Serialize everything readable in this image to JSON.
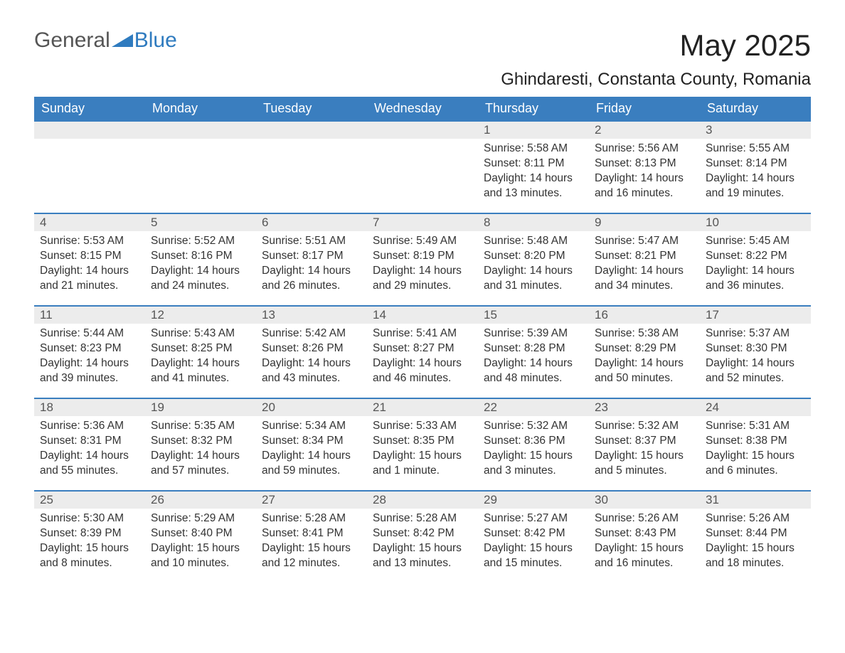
{
  "logo": {
    "general": "General",
    "blue": "Blue"
  },
  "title": "May 2025",
  "location": "Ghindaresti, Constanta County, Romania",
  "colors": {
    "header_bg": "#3a7ebf",
    "header_text": "#ffffff",
    "daynum_bg": "#ececec",
    "daynum_text": "#555555",
    "body_text": "#333333",
    "rule": "#3a7ebf",
    "logo_blue": "#2f7bbf",
    "logo_gray": "#555555",
    "background": "#ffffff"
  },
  "daysOfWeek": [
    "Sunday",
    "Monday",
    "Tuesday",
    "Wednesday",
    "Thursday",
    "Friday",
    "Saturday"
  ],
  "weeks": [
    [
      null,
      null,
      null,
      null,
      {
        "n": "1",
        "sunrise": "Sunrise: 5:58 AM",
        "sunset": "Sunset: 8:11 PM",
        "daylight": "Daylight: 14 hours and 13 minutes."
      },
      {
        "n": "2",
        "sunrise": "Sunrise: 5:56 AM",
        "sunset": "Sunset: 8:13 PM",
        "daylight": "Daylight: 14 hours and 16 minutes."
      },
      {
        "n": "3",
        "sunrise": "Sunrise: 5:55 AM",
        "sunset": "Sunset: 8:14 PM",
        "daylight": "Daylight: 14 hours and 19 minutes."
      }
    ],
    [
      {
        "n": "4",
        "sunrise": "Sunrise: 5:53 AM",
        "sunset": "Sunset: 8:15 PM",
        "daylight": "Daylight: 14 hours and 21 minutes."
      },
      {
        "n": "5",
        "sunrise": "Sunrise: 5:52 AM",
        "sunset": "Sunset: 8:16 PM",
        "daylight": "Daylight: 14 hours and 24 minutes."
      },
      {
        "n": "6",
        "sunrise": "Sunrise: 5:51 AM",
        "sunset": "Sunset: 8:17 PM",
        "daylight": "Daylight: 14 hours and 26 minutes."
      },
      {
        "n": "7",
        "sunrise": "Sunrise: 5:49 AM",
        "sunset": "Sunset: 8:19 PM",
        "daylight": "Daylight: 14 hours and 29 minutes."
      },
      {
        "n": "8",
        "sunrise": "Sunrise: 5:48 AM",
        "sunset": "Sunset: 8:20 PM",
        "daylight": "Daylight: 14 hours and 31 minutes."
      },
      {
        "n": "9",
        "sunrise": "Sunrise: 5:47 AM",
        "sunset": "Sunset: 8:21 PM",
        "daylight": "Daylight: 14 hours and 34 minutes."
      },
      {
        "n": "10",
        "sunrise": "Sunrise: 5:45 AM",
        "sunset": "Sunset: 8:22 PM",
        "daylight": "Daylight: 14 hours and 36 minutes."
      }
    ],
    [
      {
        "n": "11",
        "sunrise": "Sunrise: 5:44 AM",
        "sunset": "Sunset: 8:23 PM",
        "daylight": "Daylight: 14 hours and 39 minutes."
      },
      {
        "n": "12",
        "sunrise": "Sunrise: 5:43 AM",
        "sunset": "Sunset: 8:25 PM",
        "daylight": "Daylight: 14 hours and 41 minutes."
      },
      {
        "n": "13",
        "sunrise": "Sunrise: 5:42 AM",
        "sunset": "Sunset: 8:26 PM",
        "daylight": "Daylight: 14 hours and 43 minutes."
      },
      {
        "n": "14",
        "sunrise": "Sunrise: 5:41 AM",
        "sunset": "Sunset: 8:27 PM",
        "daylight": "Daylight: 14 hours and 46 minutes."
      },
      {
        "n": "15",
        "sunrise": "Sunrise: 5:39 AM",
        "sunset": "Sunset: 8:28 PM",
        "daylight": "Daylight: 14 hours and 48 minutes."
      },
      {
        "n": "16",
        "sunrise": "Sunrise: 5:38 AM",
        "sunset": "Sunset: 8:29 PM",
        "daylight": "Daylight: 14 hours and 50 minutes."
      },
      {
        "n": "17",
        "sunrise": "Sunrise: 5:37 AM",
        "sunset": "Sunset: 8:30 PM",
        "daylight": "Daylight: 14 hours and 52 minutes."
      }
    ],
    [
      {
        "n": "18",
        "sunrise": "Sunrise: 5:36 AM",
        "sunset": "Sunset: 8:31 PM",
        "daylight": "Daylight: 14 hours and 55 minutes."
      },
      {
        "n": "19",
        "sunrise": "Sunrise: 5:35 AM",
        "sunset": "Sunset: 8:32 PM",
        "daylight": "Daylight: 14 hours and 57 minutes."
      },
      {
        "n": "20",
        "sunrise": "Sunrise: 5:34 AM",
        "sunset": "Sunset: 8:34 PM",
        "daylight": "Daylight: 14 hours and 59 minutes."
      },
      {
        "n": "21",
        "sunrise": "Sunrise: 5:33 AM",
        "sunset": "Sunset: 8:35 PM",
        "daylight": "Daylight: 15 hours and 1 minute."
      },
      {
        "n": "22",
        "sunrise": "Sunrise: 5:32 AM",
        "sunset": "Sunset: 8:36 PM",
        "daylight": "Daylight: 15 hours and 3 minutes."
      },
      {
        "n": "23",
        "sunrise": "Sunrise: 5:32 AM",
        "sunset": "Sunset: 8:37 PM",
        "daylight": "Daylight: 15 hours and 5 minutes."
      },
      {
        "n": "24",
        "sunrise": "Sunrise: 5:31 AM",
        "sunset": "Sunset: 8:38 PM",
        "daylight": "Daylight: 15 hours and 6 minutes."
      }
    ],
    [
      {
        "n": "25",
        "sunrise": "Sunrise: 5:30 AM",
        "sunset": "Sunset: 8:39 PM",
        "daylight": "Daylight: 15 hours and 8 minutes."
      },
      {
        "n": "26",
        "sunrise": "Sunrise: 5:29 AM",
        "sunset": "Sunset: 8:40 PM",
        "daylight": "Daylight: 15 hours and 10 minutes."
      },
      {
        "n": "27",
        "sunrise": "Sunrise: 5:28 AM",
        "sunset": "Sunset: 8:41 PM",
        "daylight": "Daylight: 15 hours and 12 minutes."
      },
      {
        "n": "28",
        "sunrise": "Sunrise: 5:28 AM",
        "sunset": "Sunset: 8:42 PM",
        "daylight": "Daylight: 15 hours and 13 minutes."
      },
      {
        "n": "29",
        "sunrise": "Sunrise: 5:27 AM",
        "sunset": "Sunset: 8:42 PM",
        "daylight": "Daylight: 15 hours and 15 minutes."
      },
      {
        "n": "30",
        "sunrise": "Sunrise: 5:26 AM",
        "sunset": "Sunset: 8:43 PM",
        "daylight": "Daylight: 15 hours and 16 minutes."
      },
      {
        "n": "31",
        "sunrise": "Sunrise: 5:26 AM",
        "sunset": "Sunset: 8:44 PM",
        "daylight": "Daylight: 15 hours and 18 minutes."
      }
    ]
  ]
}
